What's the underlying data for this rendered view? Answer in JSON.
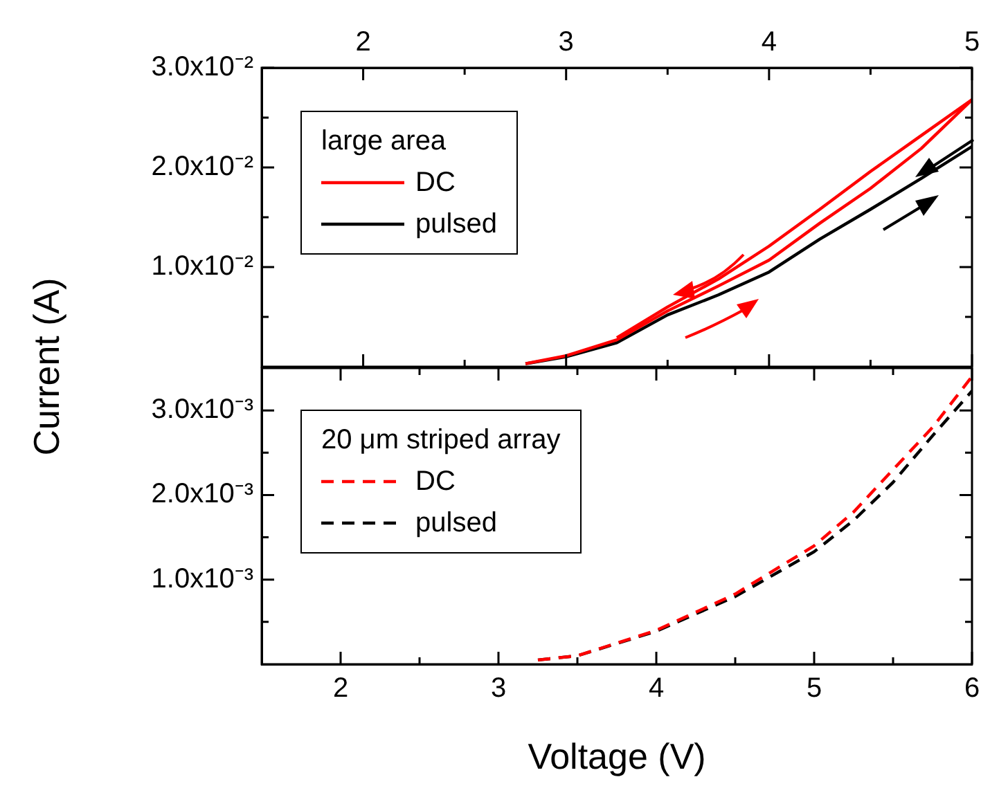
{
  "chart_data": [
    {
      "type": "line",
      "ylabel": "Current (A)",
      "legend_title": "large area",
      "legend": "top left",
      "line_style": "solid",
      "marker": "none",
      "xlim": [
        1.5,
        5
      ],
      "xticks": [
        2,
        {
          "value": 2.5,
          "label": null
        },
        3,
        {
          "value": 3.5,
          "label": null
        },
        4,
        {
          "value": 4.5,
          "label": null
        },
        5
      ],
      "ylim": [
        0,
        0.03
      ],
      "yticks": [
        {
          "value": 0.005,
          "label": null
        },
        {
          "value": 0.01,
          "label": "1.0x10⁻²"
        },
        {
          "value": 0.015,
          "label": null
        },
        {
          "value": 0.02,
          "label": "2.0x10⁻²"
        },
        {
          "value": 0.025,
          "label": null
        },
        {
          "value": 0.03,
          "label": "3.0x10⁻²"
        }
      ],
      "series": [
        {
          "name": "DC",
          "color": "#ff0000",
          "x": [
            2.8,
            3,
            3.25,
            3.5,
            3.75,
            4,
            4.25,
            4.5,
            4.75,
            5
          ],
          "values": [
            0.0003,
            0.0011,
            0.0027,
            0.0056,
            0.0081,
            0.0107,
            0.0144,
            0.0179,
            0.0219,
            0.0268
          ]
        },
        {
          "color": "#ff0000",
          "x": [
            3.25,
            3.5,
            3.75,
            4,
            4.25,
            4.5,
            4.75,
            5
          ],
          "values": [
            0.0029,
            0.006,
            0.0088,
            0.0121,
            0.0158,
            0.0196,
            0.0232,
            0.0268
          ]
        },
        {
          "name": "pulsed",
          "color": "#000000",
          "x": [
            2.8,
            3,
            3.25,
            3.5,
            3.75,
            4,
            4.25,
            4.5,
            4.75,
            5
          ],
          "values": [
            0.0003,
            0.001,
            0.0024,
            0.0052,
            0.0072,
            0.0095,
            0.0128,
            0.0158,
            0.0189,
            0.0221
          ]
        }
      ]
    },
    {
      "type": "line",
      "xlabel": "Voltage (V)",
      "legend_title": "20 μm striped array",
      "legend": "top left",
      "line_style": "dashed",
      "marker": "none",
      "xlim": [
        1.5,
        6
      ],
      "xticks": [
        2,
        {
          "value": 2.5,
          "label": null
        },
        3,
        {
          "value": 3.5,
          "label": null
        },
        4,
        {
          "value": 4.5,
          "label": null
        },
        5,
        {
          "value": 5.5,
          "label": null
        },
        6
      ],
      "ylim": [
        0,
        0.0035
      ],
      "yticks": [
        {
          "value": 0.0005,
          "label": null
        },
        {
          "value": 0.001,
          "label": "1.0x10⁻³"
        },
        {
          "value": 0.0015,
          "label": null
        },
        {
          "value": 0.002,
          "label": "2.0x10⁻³"
        },
        {
          "value": 0.0025,
          "label": null
        },
        {
          "value": 0.003,
          "label": "3.0x10⁻³"
        }
      ],
      "series": [
        {
          "name": "DC",
          "color": "#ff0000",
          "x": [
            3.25,
            3.5,
            4,
            4.5,
            5,
            5.25,
            5.5,
            5.75,
            6
          ],
          "values": [
            5e-05,
            0.0001,
            0.0004,
            0.00083,
            0.0014,
            0.0018,
            0.0023,
            0.0028,
            0.0034
          ]
        },
        {
          "name": "pulsed",
          "color": "#000000",
          "x": [
            3.25,
            3.5,
            4,
            4.5,
            5,
            5.25,
            5.5,
            5.75,
            6
          ],
          "values": [
            5e-05,
            0.0001,
            0.00039,
            0.0008,
            0.00133,
            0.0017,
            0.00215,
            0.0027,
            0.00323
          ]
        }
      ]
    }
  ]
}
